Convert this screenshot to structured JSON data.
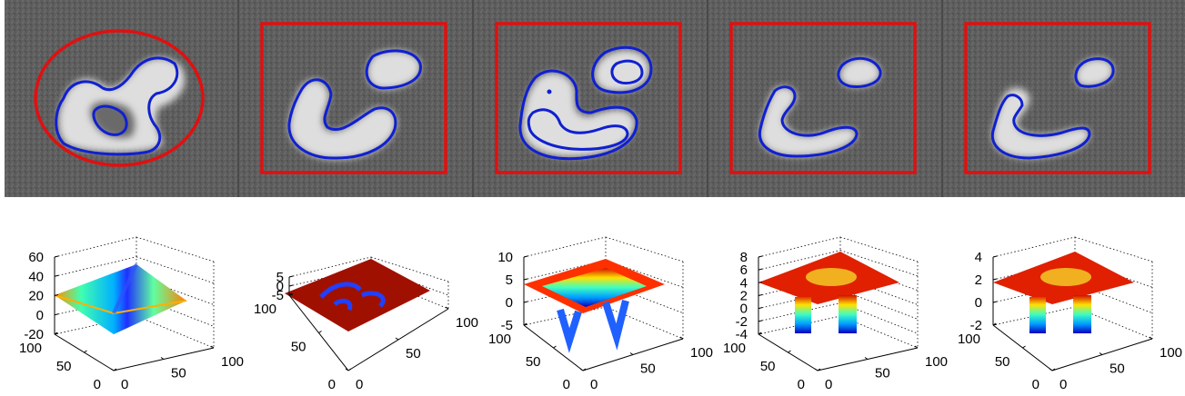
{
  "panels": [
    {
      "id": "p1",
      "init": "ellipse",
      "z_ticks": [
        "60",
        "40",
        "20",
        "0",
        "-20"
      ],
      "left_ticks": [
        "100",
        "50",
        "0"
      ],
      "right_ticks": [
        "0",
        "50",
        "100"
      ],
      "surface": "bowl"
    },
    {
      "id": "p2",
      "init": "rectangle",
      "z_ticks": [
        "5",
        "0",
        "-5"
      ],
      "left_ticks": [
        "100",
        "50",
        "0"
      ],
      "right_ticks": [
        "0",
        "50",
        "100"
      ],
      "surface": "flat-red"
    },
    {
      "id": "p3",
      "init": "rectangle",
      "z_ticks": [
        "10",
        "5",
        "0",
        "-5"
      ],
      "left_ticks": [
        "100",
        "50",
        "0"
      ],
      "right_ticks": [
        "0",
        "50",
        "100"
      ],
      "surface": "rim"
    },
    {
      "id": "p4",
      "init": "rectangle",
      "z_ticks": [
        "8",
        "6",
        "4",
        "2",
        "0",
        "-2",
        "-4"
      ],
      "left_ticks": [
        "100",
        "50",
        "0"
      ],
      "right_ticks": [
        "0",
        "50",
        "100"
      ],
      "surface": "plateau"
    },
    {
      "id": "p5",
      "init": "rectangle",
      "z_ticks": [
        "4",
        "2",
        "0",
        "-2"
      ],
      "left_ticks": [
        "100",
        "50",
        "0"
      ],
      "right_ticks": [
        "0",
        "50",
        "100"
      ],
      "surface": "plateau"
    }
  ],
  "colors": {
    "init_contour": "#e01010",
    "seg_contour": "#1020d0",
    "background": "#5e5e5e",
    "object": "#dcdcdc"
  }
}
